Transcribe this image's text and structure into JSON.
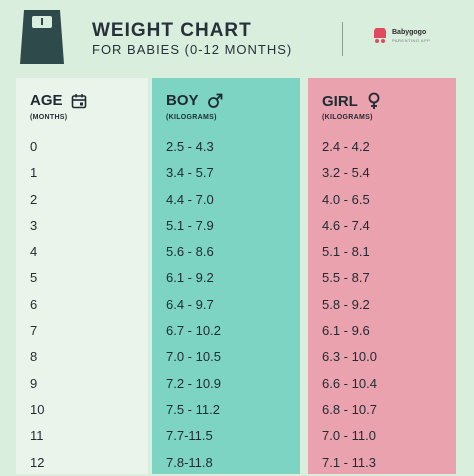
{
  "header": {
    "title": "WEIGHT CHART",
    "subtitle": "FOR BABIES (0-12 MONTHS)",
    "brand_name": "Babygogo",
    "brand_tag": "PARENTING APP"
  },
  "columns": {
    "age": {
      "title": "AGE",
      "subtitle": "(MONTHS)",
      "icon": "calendar-icon"
    },
    "boy": {
      "title": "BOY",
      "subtitle": "(KILOGRAMS)",
      "icon": "male-symbol-icon"
    },
    "girl": {
      "title": "GIRL",
      "subtitle": "(KILOGRAMS)",
      "icon": "female-symbol-icon"
    }
  },
  "rows": [
    {
      "age": "0",
      "boy": "2.5 - 4.3",
      "girl": "2.4 - 4.2"
    },
    {
      "age": "1",
      "boy": "3.4 - 5.7",
      "girl": "3.2 - 5.4"
    },
    {
      "age": "2",
      "boy": "4.4 - 7.0",
      "girl": "4.0 - 6.5"
    },
    {
      "age": "3",
      "boy": "5.1 - 7.9",
      "girl": "4.6 - 7.4"
    },
    {
      "age": "4",
      "boy": "5.6 - 8.6",
      "girl": "5.1 - 8.1"
    },
    {
      "age": "5",
      "boy": "6.1 - 9.2",
      "girl": "5.5 - 8.7"
    },
    {
      "age": "6",
      "boy": "6.4 - 9.7",
      "girl": "5.8 - 9.2"
    },
    {
      "age": "7",
      "boy": "6.7 - 10.2",
      "girl": "6.1 - 9.6"
    },
    {
      "age": "8",
      "boy": "7.0 - 10.5",
      "girl": "6.3 - 10.0"
    },
    {
      "age": "9",
      "boy": "7.2 - 10.9",
      "girl": "6.6 - 10.4"
    },
    {
      "age": "10",
      "boy": "7.5 - 11.2",
      "girl": "6.8 - 10.7"
    },
    {
      "age": "11",
      "boy": "7.7-11.5",
      "girl": "7.0 - 11.0"
    },
    {
      "age": "12",
      "boy": "7.8-11.8",
      "girl": "7.1 - 11.3"
    }
  ],
  "colors": {
    "background": "#d9eedd",
    "age_column": "#eaf4ea",
    "boy_column": "#7ed4c2",
    "girl_column": "#eaa3ae",
    "text": "#1f2a33",
    "scale_icon": "#2f4a4a"
  }
}
